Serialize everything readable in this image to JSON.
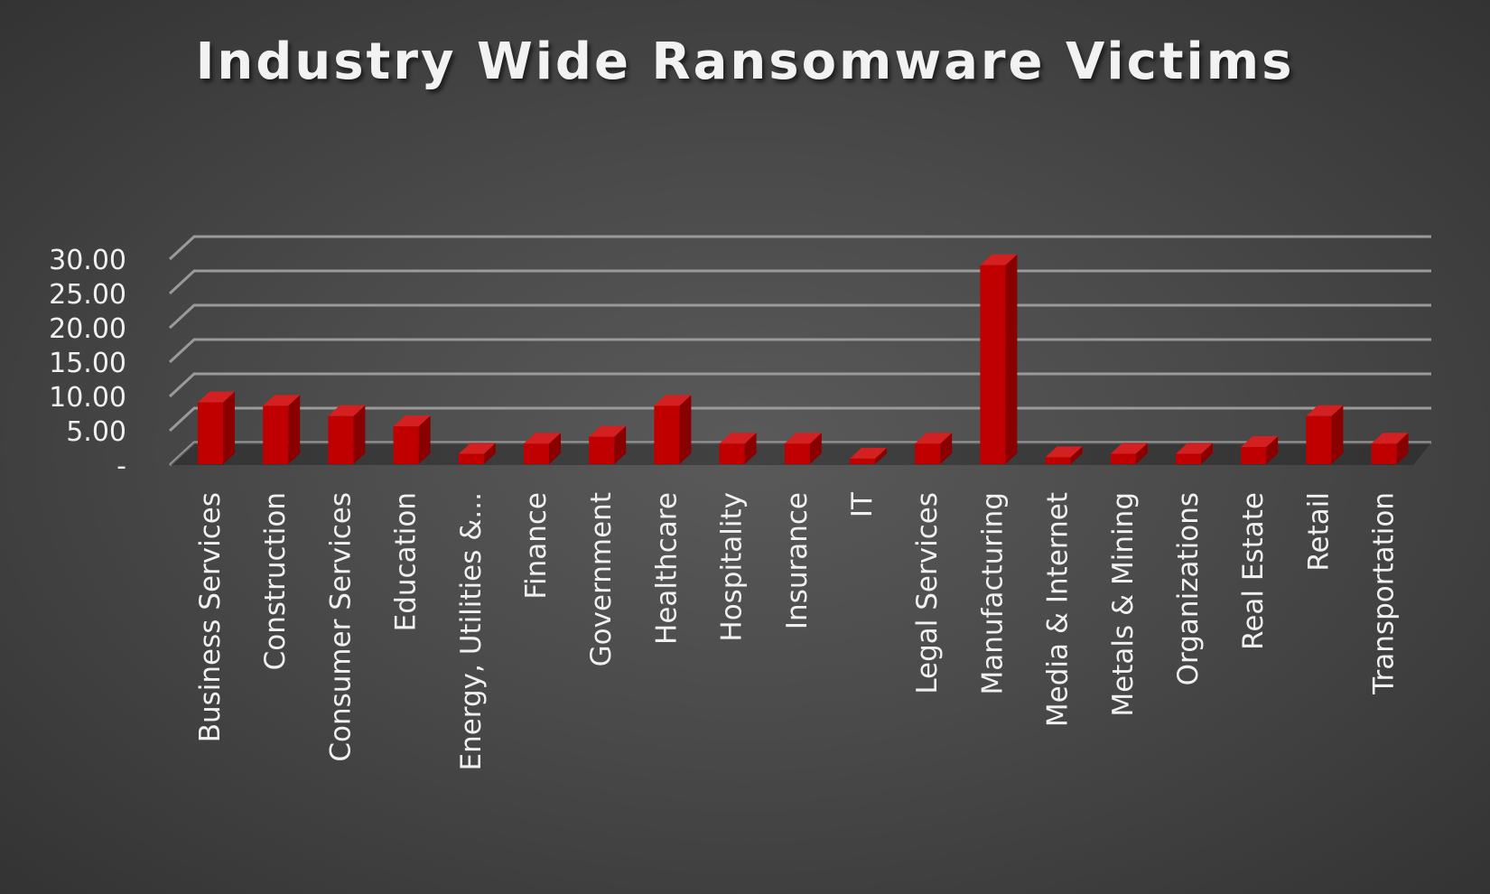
{
  "chart_data": {
    "type": "bar",
    "title": "Industry Wide Ransomware Victims",
    "xlabel": "",
    "ylabel": "",
    "ylim": [
      0,
      30
    ],
    "yticks": [
      {
        "value": 0,
        "label": "-"
      },
      {
        "value": 5,
        "label": "5.00"
      },
      {
        "value": 10,
        "label": "10.00"
      },
      {
        "value": 15,
        "label": "15.00"
      },
      {
        "value": 20,
        "label": "20.00"
      },
      {
        "value": 25,
        "label": "25.00"
      },
      {
        "value": 30,
        "label": "30.00"
      }
    ],
    "categories": [
      "Business Services",
      "Construction",
      "Consumer Services",
      "Education",
      "Energy, Utilities &...",
      "Finance",
      "Government",
      "Healthcare",
      "Hospitality",
      "Insurance",
      "IT",
      "Legal Services",
      "Manufacturing",
      "Media & Internet",
      "Metals & Mining",
      "Organizations",
      "Real Estate",
      "Retail",
      "Transportation"
    ],
    "values": [
      9.0,
      8.5,
      7.0,
      5.5,
      1.5,
      3.0,
      4.0,
      8.5,
      3.0,
      3.0,
      0.8,
      3.0,
      29.0,
      1.0,
      1.5,
      1.5,
      2.5,
      7.0,
      3.0
    ],
    "grid": true,
    "legend": "none",
    "colors": {
      "bar_front": "#c00000",
      "bar_side": "#8a0000",
      "bar_top": "#d42020",
      "grid": "#9a9a9a",
      "text": "#f0f0f0"
    }
  }
}
